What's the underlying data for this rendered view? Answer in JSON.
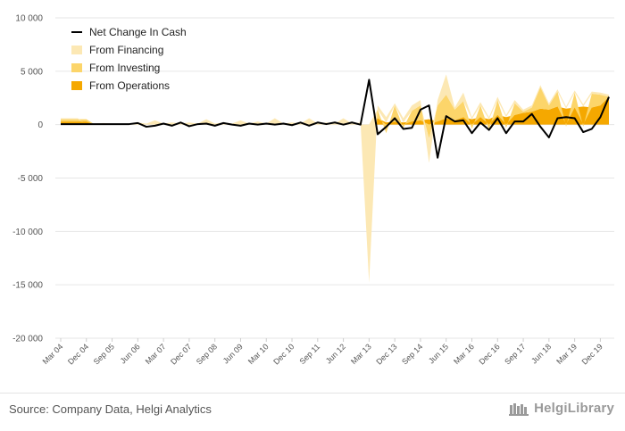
{
  "chart_data": {
    "type": "area",
    "categories": [
      "Mar 04",
      "Jun 04",
      "Sep 04",
      "Dec 04",
      "Mar 05",
      "Jun 05",
      "Sep 05",
      "Dec 05",
      "Mar 06",
      "Jun 06",
      "Sep 06",
      "Dec 06",
      "Mar 07",
      "Jun 07",
      "Sep 07",
      "Dec 07",
      "Mar 08",
      "Jun 08",
      "Sep 08",
      "Dec 08",
      "Mar 09",
      "Jun 09",
      "Sep 09",
      "Dec 09",
      "Mar 10",
      "Jun 10",
      "Sep 10",
      "Dec 10",
      "Mar 11",
      "Jun 11",
      "Sep 11",
      "Dec 11",
      "Mar 12",
      "Jun 12",
      "Sep 12",
      "Dec 12",
      "Mar 13",
      "Jun 13",
      "Sep 13",
      "Dec 13",
      "Mar 14",
      "Jun 14",
      "Sep 14",
      "Dec 14",
      "Mar 15",
      "Jun 15",
      "Sep 15",
      "Dec 15",
      "Mar 16",
      "Jun 16",
      "Sep 16",
      "Dec 16",
      "Mar 17",
      "Jun 17",
      "Sep 17",
      "Dec 17",
      "Mar 18",
      "Jun 18",
      "Sep 18",
      "Dec 18",
      "Mar 19",
      "Jun 19",
      "Sep 19",
      "Dec 19",
      "Mar 20"
    ],
    "x_tick_labels": [
      "Mar 04",
      "Dec 04",
      "Sep 05",
      "Jun 06",
      "Mar 07",
      "Dec 07",
      "Sep 08",
      "Jun 09",
      "Mar 10",
      "Dec 10",
      "Sep 11",
      "Jun 12",
      "Mar 13",
      "Dec 13",
      "Sep 14",
      "Jun 15",
      "Mar 16",
      "Dec 16",
      "Sep 17",
      "Jun 18",
      "Mar 19",
      "Dec 19"
    ],
    "y_ticks": [
      10000,
      5000,
      0,
      -5000,
      -10000,
      -15000,
      -20000
    ],
    "y_tick_labels": [
      "10 000",
      "5 000",
      "0",
      "-5 000",
      "-10 000",
      "-15 000",
      "-20 000"
    ],
    "ylim": [
      -20000,
      10000
    ],
    "series": [
      {
        "name": "From Operations",
        "color": "#f5a800",
        "values": [
          300,
          300,
          300,
          300,
          0,
          0,
          0,
          0,
          0,
          0,
          0,
          0,
          0,
          0,
          0,
          0,
          0,
          0,
          0,
          0,
          0,
          0,
          0,
          0,
          0,
          0,
          0,
          0,
          0,
          0,
          0,
          0,
          0,
          0,
          0,
          0,
          0,
          600,
          200,
          300,
          200,
          300,
          400,
          500,
          300,
          600,
          400,
          700,
          500,
          700,
          500,
          900,
          700,
          900,
          1100,
          1200,
          1500,
          1400,
          1700,
          1500,
          1600,
          1700,
          1600,
          1800,
          2600
        ]
      },
      {
        "name": "From Investing",
        "color": "#fcd56a",
        "values": [
          200,
          200,
          200,
          200,
          0,
          50,
          0,
          0,
          0,
          0,
          0,
          0,
          0,
          0,
          0,
          0,
          0,
          0,
          0,
          0,
          0,
          0,
          0,
          0,
          0,
          0,
          0,
          0,
          0,
          0,
          0,
          0,
          0,
          0,
          0,
          0,
          0,
          800,
          -800,
          1500,
          -300,
          1000,
          1400,
          -1300,
          1500,
          2200,
          1000,
          1500,
          -400,
          1100,
          -500,
          1400,
          -300,
          1100,
          100,
          400,
          2000,
          400,
          1400,
          -200,
          1400,
          -200,
          1300,
          1000,
          0
        ]
      },
      {
        "name": "From Financing",
        "color": "#fce8b4",
        "values": [
          100,
          100,
          100,
          -50,
          100,
          100,
          100,
          100,
          100,
          200,
          100,
          400,
          100,
          200,
          100,
          200,
          100,
          500,
          100,
          200,
          100,
          400,
          100,
          300,
          100,
          600,
          100,
          200,
          100,
          600,
          100,
          200,
          100,
          600,
          100,
          200,
          -14800,
          400,
          500,
          200,
          400,
          500,
          500,
          -2300,
          500,
          1900,
          200,
          800,
          200,
          300,
          200,
          300,
          200,
          300,
          200,
          200,
          200,
          200,
          200,
          200,
          200,
          200,
          200,
          200,
          200
        ]
      },
      {
        "name": "Net Change In Cash",
        "color": "#000000",
        "values": [
          50,
          50,
          50,
          50,
          50,
          50,
          50,
          50,
          50,
          150,
          -200,
          -100,
          100,
          -100,
          200,
          -150,
          50,
          100,
          -100,
          150,
          0,
          -100,
          100,
          0,
          100,
          0,
          100,
          -50,
          200,
          -100,
          200,
          50,
          200,
          0,
          200,
          0,
          4200,
          -900,
          -200,
          600,
          -400,
          -300,
          1400,
          1800,
          -3100,
          800,
          300,
          400,
          -800,
          200,
          -500,
          600,
          -800,
          300,
          300,
          1000,
          -200,
          -1200,
          600,
          700,
          600,
          -700,
          -400,
          700,
          2600
        ]
      }
    ]
  },
  "legend": [
    {
      "label": "Net Change In Cash",
      "color": "#000000",
      "kind": "line"
    },
    {
      "label": "From Financing",
      "color": "#fce8b4",
      "kind": "area"
    },
    {
      "label": "From Investing",
      "color": "#fcd56a",
      "kind": "area"
    },
    {
      "label": "From Operations",
      "color": "#f5a800",
      "kind": "area"
    }
  ],
  "footer": {
    "source": "Source: Company Data, Helgi Analytics",
    "brand": "HelgiLibrary",
    "brand_icon": "library-icon"
  }
}
